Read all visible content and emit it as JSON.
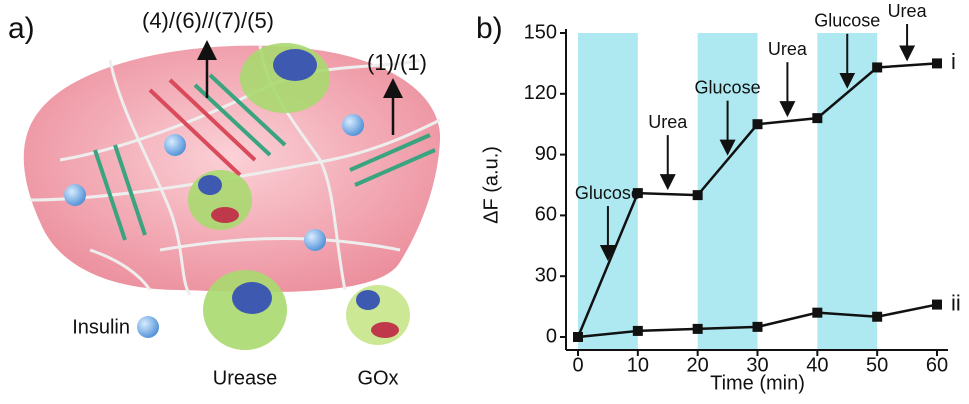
{
  "panel_a": {
    "label": "a)",
    "arrow_labels": [
      "(4)/(6)//(7)/(5)",
      "(1)/(1)"
    ],
    "insulin": "Insulin",
    "urease": "Urease",
    "gox": "GOx"
  },
  "chart_data": {
    "type": "line",
    "panel_label": "b)",
    "x_label": "Time (min)",
    "y_label": "ΔF (a.u.)",
    "x": [
      0,
      10,
      20,
      30,
      40,
      50,
      60
    ],
    "series": [
      {
        "name": "i",
        "color": "#111111",
        "values": [
          0,
          71,
          70,
          105,
          108,
          133,
          135
        ]
      },
      {
        "name": "ii",
        "color": "#111111",
        "values": [
          0,
          3,
          4,
          5,
          12,
          10,
          16
        ]
      }
    ],
    "shaded": [
      [
        0,
        10
      ],
      [
        20,
        30
      ],
      [
        40,
        50
      ]
    ],
    "shade_color": "#aee9f2",
    "annotations": [
      "Glucose",
      "Urea",
      "Glucose",
      "Urea",
      "Glucose",
      "Urea"
    ],
    "xlim": [
      0,
      60
    ],
    "xticks": [
      0,
      10,
      20,
      30,
      40,
      50,
      60
    ],
    "ylim": [
      0,
      150
    ],
    "yticks": [
      0,
      30,
      60,
      90,
      120,
      150
    ]
  }
}
